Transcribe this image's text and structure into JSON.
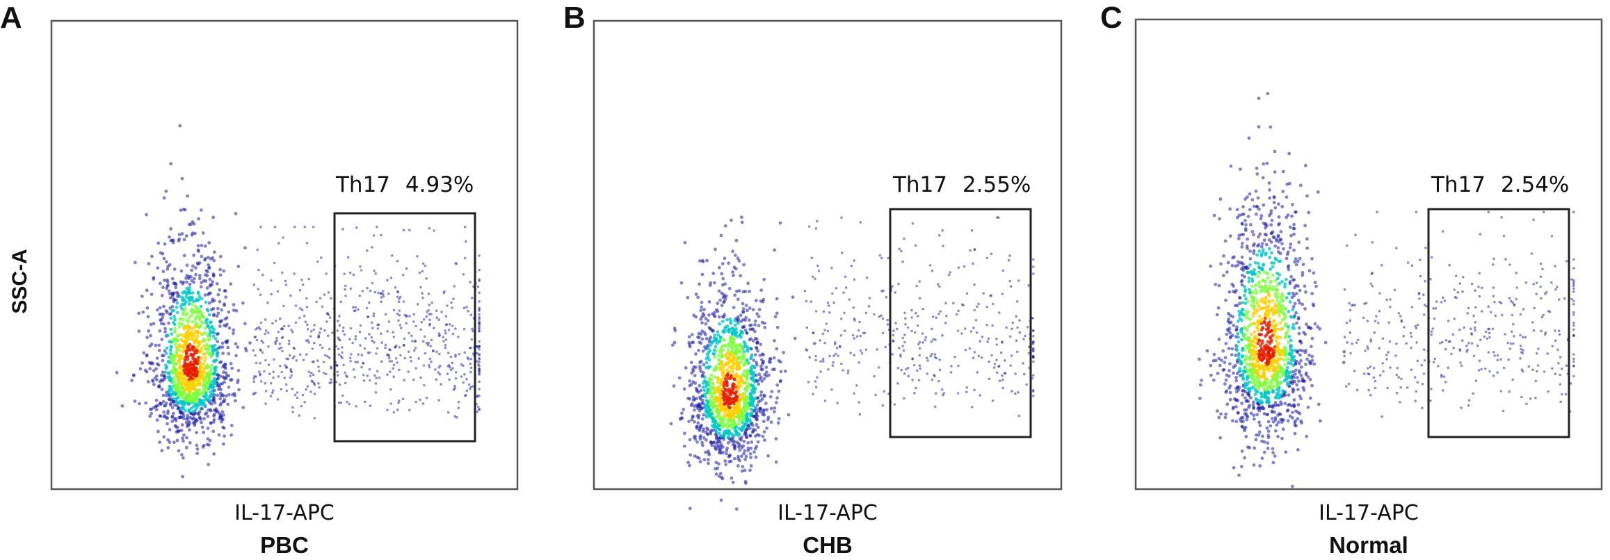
{
  "y_axis_label": "SSC-A",
  "colors": {
    "low": "#1a1aa8",
    "mid": "#00c8c8",
    "midhigh": "#7cff3a",
    "high": "#ffd000",
    "peak": "#e61e00"
  },
  "chart_data": [
    {
      "type": "scatter",
      "panel": "A",
      "group": "PBC",
      "xlabel": "IL-17-APC",
      "ylabel": "SSC-A",
      "gate": {
        "label": "Th17",
        "value": "4.93%"
      },
      "gate_region": {
        "x": [
          0.613,
          0.908
        ],
        "y": [
          0.1,
          0.58
        ]
      },
      "main_population": {
        "center_x": 0.3,
        "center_y": 0.26,
        "spread_x": 0.1,
        "spread_y": 0.2
      }
    },
    {
      "type": "scatter",
      "panel": "B",
      "group": "CHB",
      "xlabel": "IL-17-APC",
      "ylabel": "SSC-A",
      "gate": {
        "label": "Th17",
        "value": "2.55%"
      },
      "gate_region": {
        "x": [
          0.63,
          0.93
        ],
        "y": [
          0.11,
          0.6
        ]
      },
      "main_population": {
        "center_x": 0.29,
        "center_y": 0.2,
        "spread_x": 0.1,
        "spread_y": 0.19
      }
    },
    {
      "type": "scatter",
      "panel": "C",
      "group": "Normal",
      "xlabel": "IL-17-APC",
      "ylabel": "SSC-A",
      "gate": {
        "label": "Th17",
        "value": "2.54%"
      },
      "gate_region": {
        "x": [
          0.628,
          0.93
        ],
        "y": [
          0.11,
          0.61
        ]
      },
      "main_population": {
        "center_x": 0.28,
        "center_y": 0.3,
        "spread_x": 0.11,
        "spread_y": 0.25
      }
    }
  ]
}
